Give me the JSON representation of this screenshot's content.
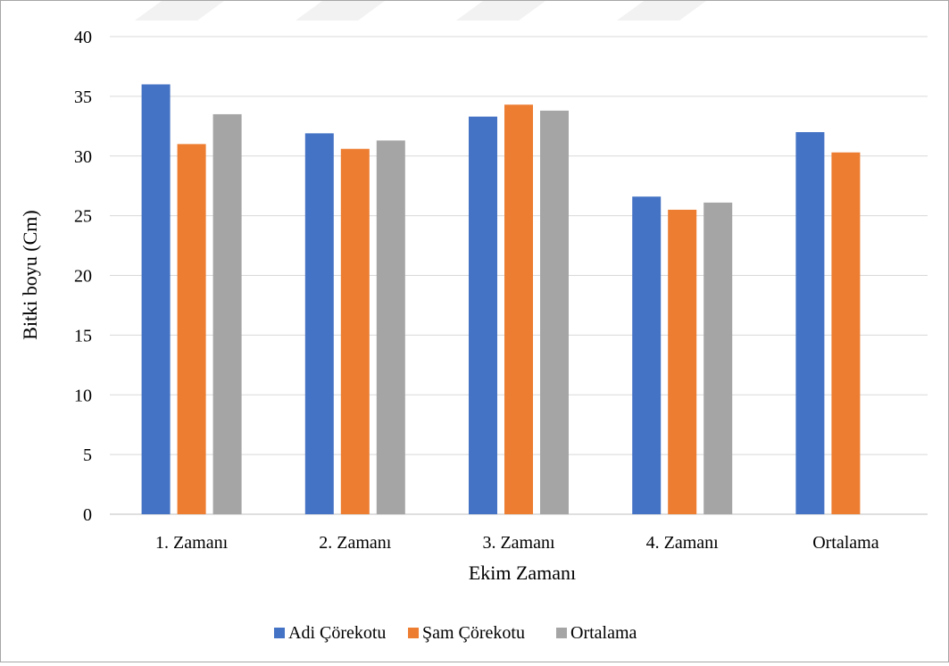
{
  "chart_data": {
    "type": "bar",
    "title": "",
    "xlabel": "Ekim Zamanı",
    "ylabel": "Bitki boyu (Cm)",
    "ylim": [
      0,
      40
    ],
    "yticks": [
      0,
      5,
      10,
      15,
      20,
      25,
      30,
      35,
      40
    ],
    "categories": [
      "1. Zamanı",
      "2. Zamanı",
      "3. Zamanı",
      "4. Zamanı",
      "Ortalama"
    ],
    "series": [
      {
        "name": "Adi Çörekotu",
        "color": "#4472c4",
        "values": [
          36.0,
          31.9,
          33.3,
          26.6,
          32.0
        ]
      },
      {
        "name": "Şam Çörekotu",
        "color": "#ed7d31",
        "values": [
          31.0,
          30.6,
          34.3,
          25.5,
          30.3
        ]
      },
      {
        "name": "Ortalama",
        "color": "#a5a5a5",
        "values": [
          33.5,
          31.3,
          33.8,
          26.1,
          null
        ]
      }
    ],
    "grid": true,
    "legend_position": "bottom"
  }
}
